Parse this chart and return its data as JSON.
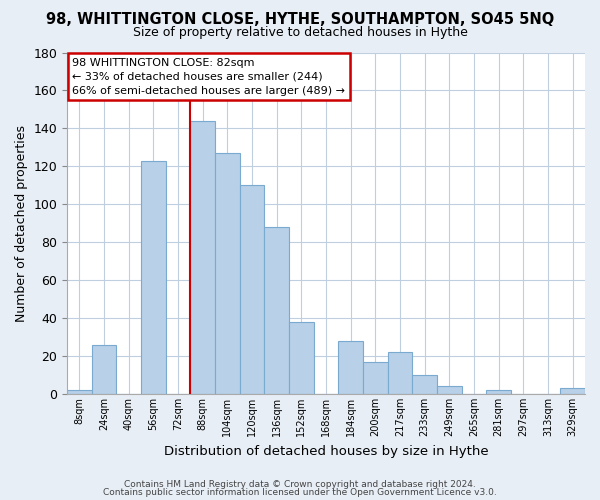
{
  "title": "98, WHITTINGTON CLOSE, HYTHE, SOUTHAMPTON, SO45 5NQ",
  "subtitle": "Size of property relative to detached houses in Hythe",
  "xlabel": "Distribution of detached houses by size in Hythe",
  "ylabel": "Number of detached properties",
  "bar_labels": [
    "8sqm",
    "24sqm",
    "40sqm",
    "56sqm",
    "72sqm",
    "88sqm",
    "104sqm",
    "120sqm",
    "136sqm",
    "152sqm",
    "168sqm",
    "184sqm",
    "200sqm",
    "217sqm",
    "233sqm",
    "249sqm",
    "265sqm",
    "281sqm",
    "297sqm",
    "313sqm",
    "329sqm"
  ],
  "bar_values": [
    2,
    26,
    0,
    123,
    0,
    144,
    127,
    110,
    88,
    38,
    0,
    28,
    17,
    22,
    10,
    4,
    0,
    2,
    0,
    0,
    3
  ],
  "bar_color": "#b8d0e8",
  "bar_edge_color": "#7aaad0",
  "ylim": [
    0,
    180
  ],
  "yticks": [
    0,
    20,
    40,
    60,
    80,
    100,
    120,
    140,
    160,
    180
  ],
  "vline_color": "#cc0000",
  "annotation_title": "98 WHITTINGTON CLOSE: 82sqm",
  "annotation_line1": "← 33% of detached houses are smaller (244)",
  "annotation_line2": "66% of semi-detached houses are larger (489) →",
  "annotation_box_color": "#ffffff",
  "annotation_box_edge": "#cc0000",
  "footer1": "Contains HM Land Registry data © Crown copyright and database right 2024.",
  "footer2": "Contains public sector information licensed under the Open Government Licence v3.0.",
  "bg_color": "#e8eef5",
  "plot_bg_color": "#ffffff",
  "grid_color": "#c0cfe0"
}
